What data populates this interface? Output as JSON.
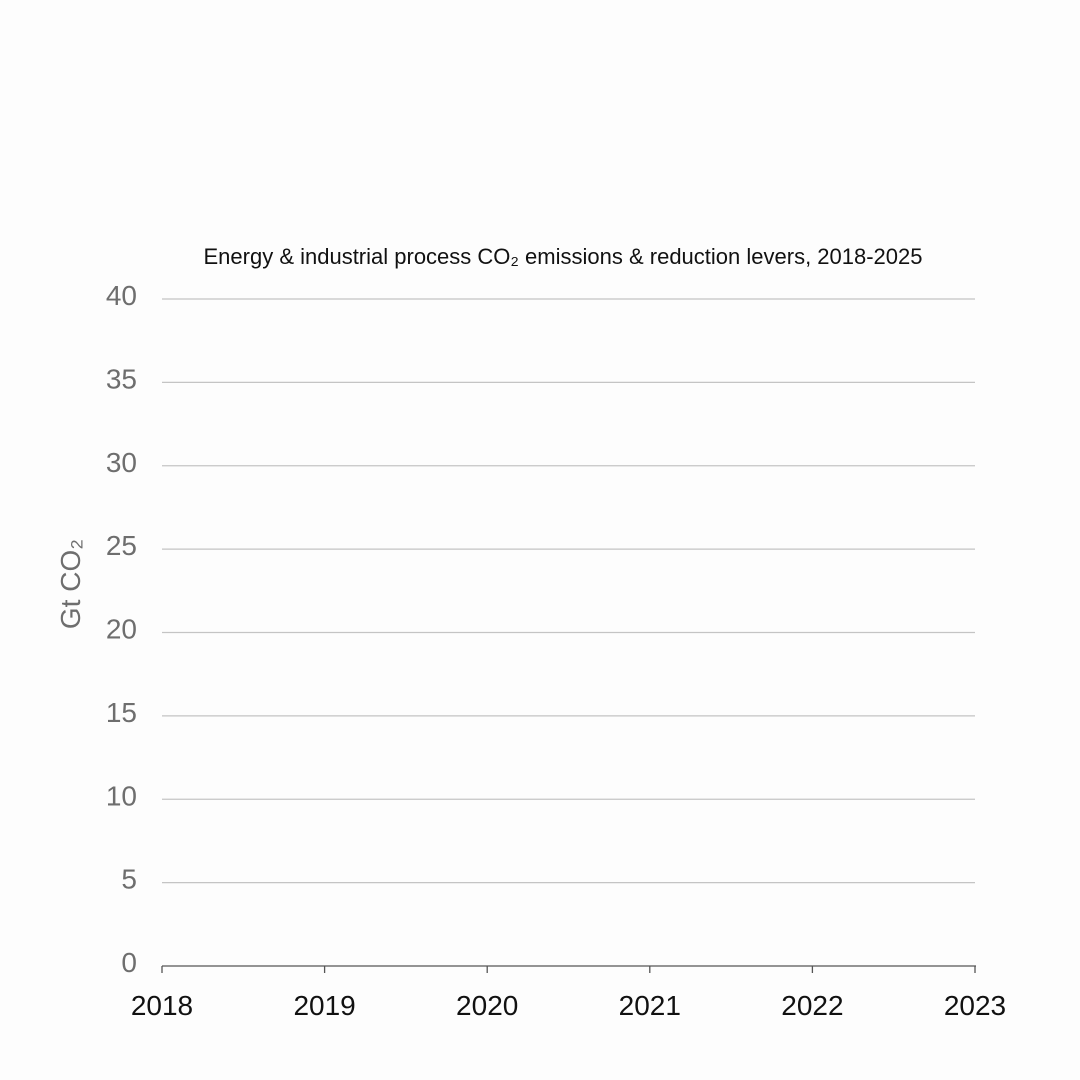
{
  "chart_data": {
    "type": "bar",
    "title": "Energy & industrial process CO₂ emissions & reduction levers, 2018-2025",
    "ylabel": "Gt CO₂",
    "xlabel": "",
    "ylim": [
      0,
      40
    ],
    "yticks": [
      "0",
      "5",
      "10",
      "15",
      "20",
      "25",
      "30",
      "35",
      "40"
    ],
    "xticks": [
      "2018",
      "2019",
      "2020",
      "2021",
      "2022",
      "2023"
    ],
    "categories": [],
    "series": [],
    "grid": true,
    "colors": {
      "grid": "#c4c4c4",
      "axis": "#555555",
      "ytick_text": "#6e6e6e",
      "xtick_text": "#111111"
    }
  }
}
